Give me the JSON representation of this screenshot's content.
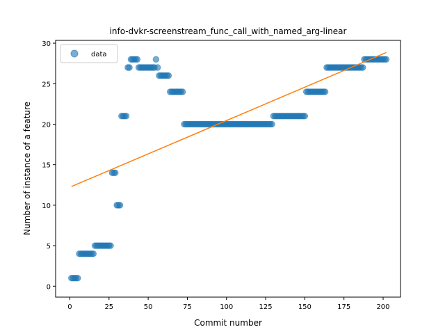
{
  "chart_data": {
    "type": "scatter",
    "title": "info-dvkr-screenstream_func_call_with_named_arg-linear",
    "xlabel": "Commit number",
    "ylabel": "Number of instance of a feature",
    "xlim": [
      -9.1,
      211.1
    ],
    "ylim": [
      -1.35,
      30.35
    ],
    "xticks": [
      0,
      25,
      50,
      75,
      100,
      125,
      150,
      175,
      200
    ],
    "yticks": [
      0,
      5,
      10,
      15,
      20,
      25,
      30
    ],
    "grid": false,
    "legend_position": "top-left",
    "series": [
      {
        "name": "data",
        "kind": "scatter",
        "color": "#1f77b4",
        "segments": [
          {
            "from": 1,
            "to": 5,
            "value": 1
          },
          {
            "from": 6,
            "to": 15,
            "value": 4
          },
          {
            "from": 16,
            "to": 26,
            "value": 5
          },
          {
            "from": 27,
            "to": 29,
            "value": 14
          },
          {
            "from": 30,
            "to": 32,
            "value": 10
          },
          {
            "from": 33,
            "to": 36,
            "value": 21
          },
          {
            "from": 37,
            "to": 38,
            "value": 27
          },
          {
            "from": 39,
            "to": 43,
            "value": 28
          },
          {
            "from": 44,
            "to": 54,
            "value": 27
          },
          {
            "from": 55,
            "to": 55,
            "value": 28
          },
          {
            "from": 56,
            "to": 56,
            "value": 27
          },
          {
            "from": 57,
            "to": 63,
            "value": 26
          },
          {
            "from": 64,
            "to": 72,
            "value": 24
          },
          {
            "from": 73,
            "to": 129,
            "value": 20
          },
          {
            "from": 130,
            "to": 150,
            "value": 21
          },
          {
            "from": 151,
            "to": 163,
            "value": 24
          },
          {
            "from": 164,
            "to": 187,
            "value": 27
          },
          {
            "from": 188,
            "to": 202,
            "value": 28
          }
        ]
      },
      {
        "name": "",
        "kind": "line",
        "color": "#ff7f0e",
        "x": [
          1,
          202
        ],
        "y": [
          12.3,
          28.85
        ]
      }
    ]
  }
}
